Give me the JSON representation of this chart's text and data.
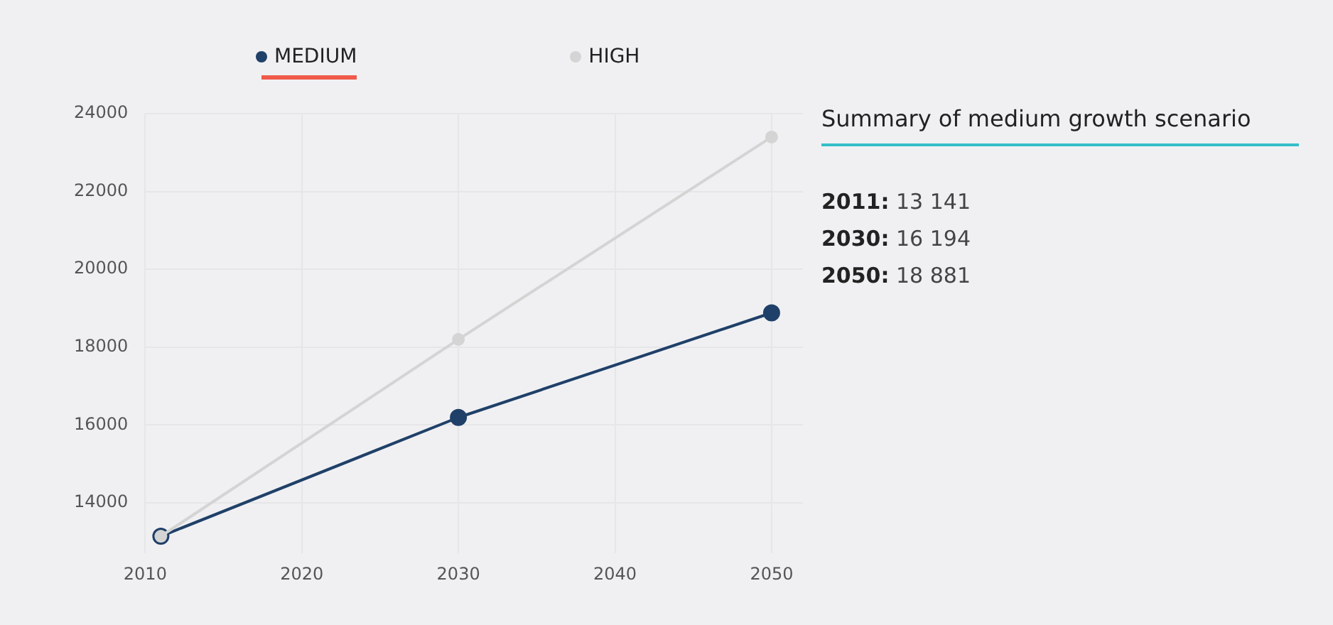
{
  "chart_data": {
    "type": "line",
    "x": [
      2011,
      2030,
      2050
    ],
    "series": [
      {
        "name": "MEDIUM",
        "color": "#1f4068",
        "values": [
          13141,
          16194,
          18881
        ]
      },
      {
        "name": "HIGH",
        "color": "#d4d4d4",
        "values": [
          13141,
          18200,
          23400
        ]
      }
    ],
    "xlim": [
      2010,
      2052
    ],
    "xticks": [
      2010,
      2020,
      2030,
      2040,
      2050
    ],
    "ylim": [
      12700,
      24000
    ],
    "yticks": [
      14000,
      16000,
      18000,
      20000,
      22000,
      24000
    ],
    "grid": true,
    "legend": "top",
    "marker": "circle",
    "line_style": "solid",
    "annotations": [
      "Summary of medium growth scenario",
      "2011: 13 141",
      "2030: 16 194",
      "2050: 18 881"
    ]
  }
}
